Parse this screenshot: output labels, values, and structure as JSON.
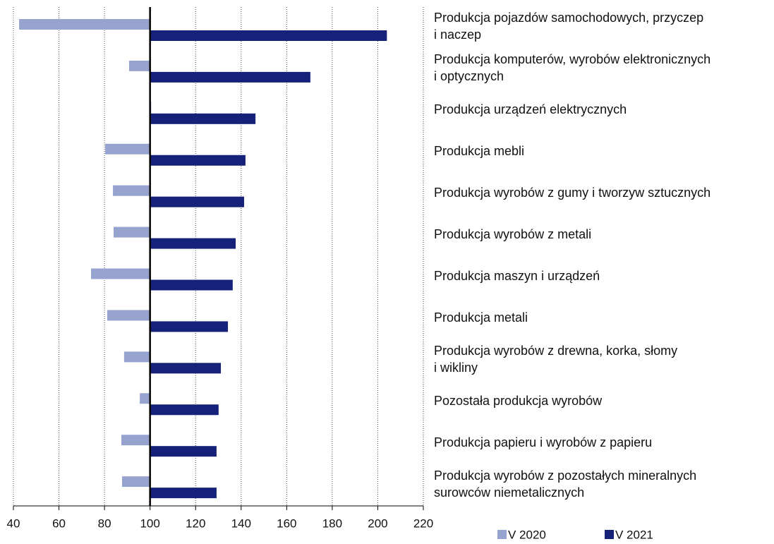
{
  "chart_data": {
    "type": "hbar_diverging",
    "categories": [
      "Produkcja pojazdów samochodowych, przyczep\n i naczep",
      "Produkcja komputerów, wyrobów elektronicznych\n i optycznych",
      "Produkcja urządzeń elektrycznych",
      "Produkcja mebli",
      "Produkcja wyrobów z gumy i tworzyw sztucznych",
      "Produkcja wyrobów z metali",
      "Produkcja maszyn i urządzeń",
      "Produkcja metali",
      "Produkcja wyrobów z drewna, korka, słomy\ni wikliny",
      "Pozostała produkcja wyrobów",
      "Produkcja papieru i wyrobów z papieru",
      "Produkcja wyrobów z pozostałych mineralnych\nsurowców niemetalicznych"
    ],
    "series": [
      {
        "name": "V 2020",
        "color": "#97a3cf",
        "values": [
          42.5,
          90.8,
          100.5,
          80.3,
          83.7,
          84,
          74.1,
          81.2,
          88.6,
          95.5,
          87.4,
          87.7
        ]
      },
      {
        "name": "V 2021",
        "color": "#16217a",
        "values": [
          204,
          170.4,
          146.3,
          141.9,
          141.3,
          137.6,
          136.3,
          134.2,
          131.1,
          130.1,
          129.2,
          129.2
        ]
      }
    ],
    "baseline": 100,
    "xlim": [
      40,
      220
    ],
    "xticks": [
      40,
      60,
      80,
      100,
      120,
      140,
      160,
      180,
      200,
      220
    ],
    "grid": true,
    "legend": "bottom-right"
  }
}
